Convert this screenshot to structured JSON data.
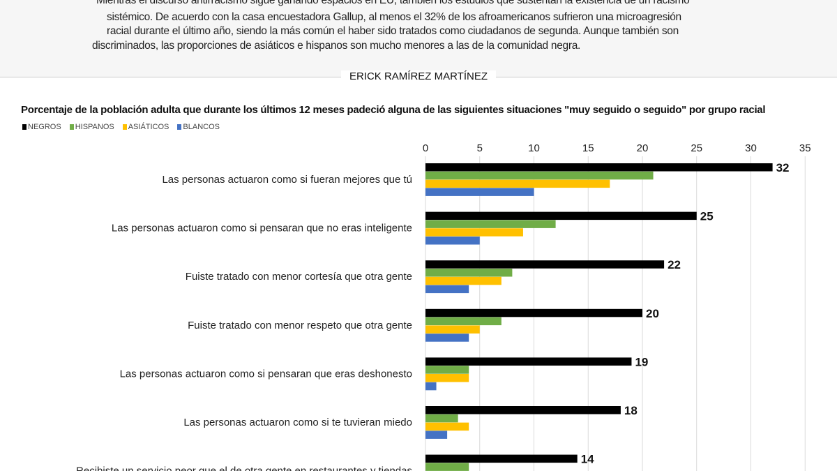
{
  "intro": {
    "lines": [
      "Mientras el discurso antirracismo sigue ganando espacios en EU, también los estudios que sustentan la existencia de un racismo",
      "sistémico. De acuerdo con la casa encuestadora Gallup, al menos el 32% de los afroamericanos sufrieron una microagresión",
      "racial durante el último año, siendo la más común el haber sido tratados como ciudadanos de segunda. Aunque también son",
      "discriminados, las proporciones de asiáticos e hispanos son mucho menores a las de la comunidad negra."
    ]
  },
  "author": "ERICK RAMÍREZ MARTÍNEZ",
  "chart_data": {
    "type": "bar",
    "orientation": "horizontal",
    "title": "Porcentaje de la población adulta que durante los últimos 12 meses padeció alguna de las siguientes situaciones \"muy seguido o seguido\" por grupo racial",
    "legend_position": "top-left",
    "xlim": [
      0,
      35
    ],
    "xticks": [
      0,
      5,
      10,
      15,
      20,
      25,
      30,
      35
    ],
    "grid": true,
    "categories": [
      "Las personas actuaron como si fueran mejores que tú",
      "Las personas actuaron como si pensaran que no eras inteligente",
      "Fuiste tratado con menor cortesía que otra gente",
      "Fuiste tratado con menor respeto que otra gente",
      "Las personas actuaron como si pensaran que eras deshonesto",
      "Las personas actuaron como si te tuvieran miedo",
      "Recibiste un servicio peor que el de otra gente en restaurantes y tiendas"
    ],
    "series": [
      {
        "name": "NEGROS",
        "color": "#000000",
        "values": [
          32,
          25,
          22,
          20,
          19,
          18,
          14
        ],
        "labeled": true
      },
      {
        "name": "HISPANOS",
        "color": "#70ad47",
        "values": [
          21,
          12,
          8,
          7,
          4,
          3,
          4
        ]
      },
      {
        "name": "ASIÁTICOS",
        "color": "#ffc000",
        "values": [
          17,
          9,
          7,
          5,
          4,
          4,
          null
        ]
      },
      {
        "name": "BLANCOS",
        "color": "#4472c4",
        "values": [
          10,
          5,
          4,
          4,
          1,
          2,
          null
        ]
      }
    ]
  }
}
